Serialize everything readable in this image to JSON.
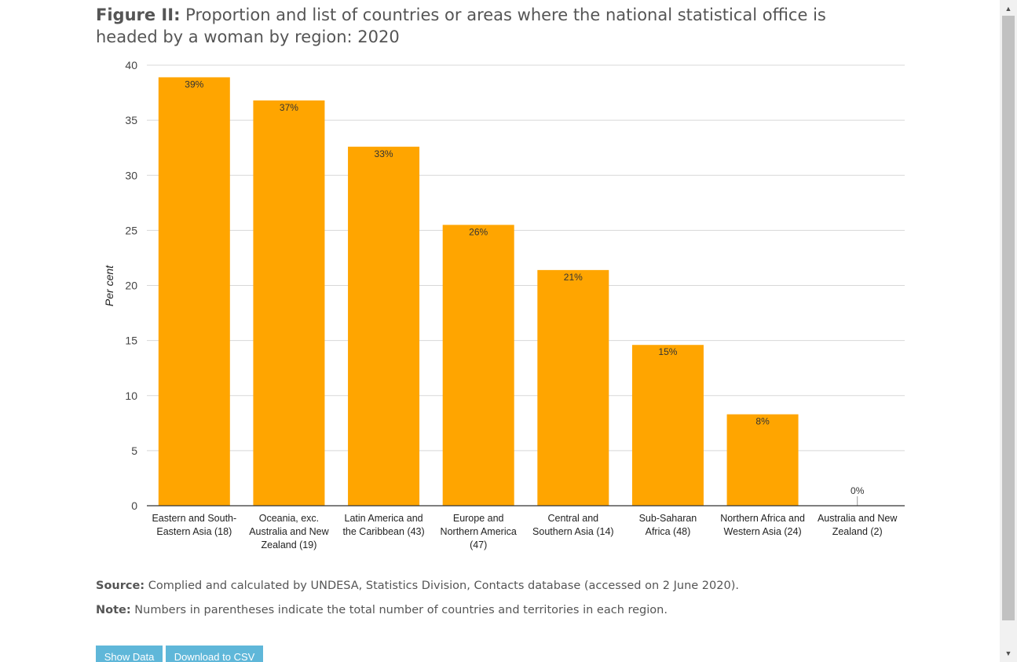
{
  "figure": {
    "title_label": "Figure II:",
    "title_text": " Proportion and list of countries or areas where the national statistical office is headed by a woman by region: 2020"
  },
  "source": {
    "label": "Source:",
    "text": " Complied and calculated by UNDESA, Statistics Division, Contacts database (accessed on 2 June 2020)."
  },
  "note": {
    "label": "Note:",
    "text": " Numbers in parentheses indicate the total number of countries and territories in each region."
  },
  "buttons": {
    "show_data": "Show Data",
    "download_csv": "Download to CSV"
  },
  "colors": {
    "bar": "#ffa500",
    "grid": "#d8d8d8",
    "axis": "#333333",
    "text": "#444444"
  },
  "chart_data": {
    "type": "bar",
    "title": "Proportion and list of countries or areas where the national statistical office is headed by a woman by region: 2020",
    "xlabel": "",
    "ylabel": "Per cent",
    "ylim": [
      0,
      40
    ],
    "yticks": [
      0,
      5,
      10,
      15,
      20,
      25,
      30,
      35,
      40
    ],
    "grid": true,
    "categories": [
      [
        "Eastern and South-",
        "Eastern Asia (18)"
      ],
      [
        "Oceania, exc.",
        "Australia and New",
        "Zealand (19)"
      ],
      [
        "Latin America and",
        "the Caribbean (43)"
      ],
      [
        "Europe and",
        "Northern America",
        "(47)"
      ],
      [
        "Central and",
        "Southern Asia (14)"
      ],
      [
        "Sub-Saharan",
        "Africa (48)"
      ],
      [
        "Northern Africa and",
        "Western Asia (24)"
      ],
      [
        "Australia and New",
        "Zealand (2)"
      ]
    ],
    "values": [
      38.9,
      36.8,
      32.6,
      25.5,
      21.4,
      14.6,
      8.3,
      0
    ],
    "data_labels": [
      "39%",
      "37%",
      "33%",
      "26%",
      "21%",
      "15%",
      "8%",
      "0%"
    ]
  }
}
